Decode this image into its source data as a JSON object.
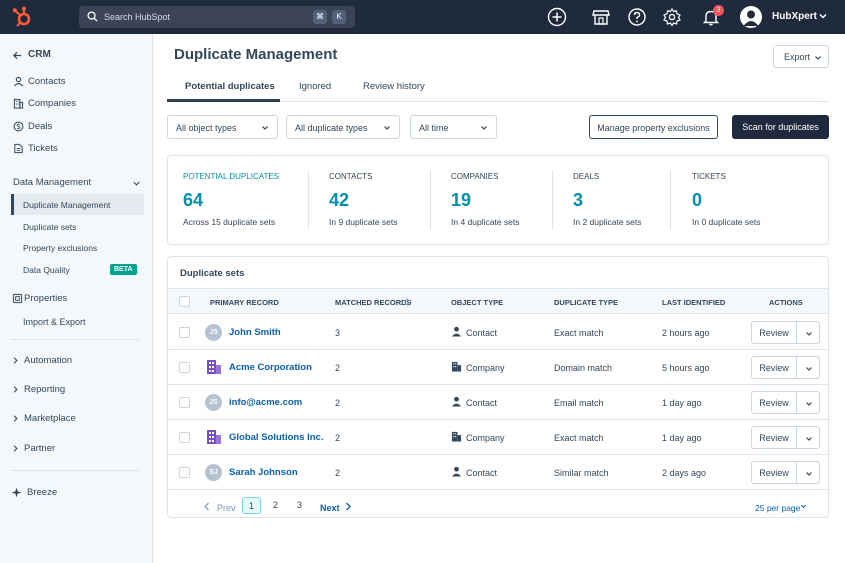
{
  "topbar": {
    "search_placeholder": "Search HubSpot",
    "shortcut_key1": "⌘",
    "shortcut_key2": "K",
    "notification_count": "3",
    "user_name": "HubXpert"
  },
  "sidebar": {
    "back_label": "CRM",
    "items": [
      {
        "label": "Contacts"
      },
      {
        "label": "Companies"
      },
      {
        "label": "Deals"
      },
      {
        "label": "Tickets"
      }
    ],
    "data_management": {
      "label": "Data Management",
      "items": [
        {
          "label": "Duplicate Management"
        },
        {
          "label": "Duplicate sets"
        },
        {
          "label": "Property exclusions"
        },
        {
          "label": "Data Quality",
          "badge": "BETA"
        }
      ]
    },
    "properties": {
      "label": "Properties"
    },
    "import_export": {
      "label": "Import & Export"
    },
    "groups": [
      {
        "label": "Automation"
      },
      {
        "label": "Reporting"
      },
      {
        "label": "Marketplace"
      },
      {
        "label": "Partner"
      }
    ],
    "breeze": {
      "label": "Breeze"
    }
  },
  "main": {
    "title": "Duplicate Management",
    "export_label": "Export",
    "tabs": [
      {
        "label": "Potential duplicates",
        "active": true
      },
      {
        "label": "Ignored"
      },
      {
        "label": "Review history"
      }
    ],
    "filters": [
      {
        "label": "All object types"
      },
      {
        "label": "All duplicate types"
      },
      {
        "label": "All time"
      }
    ],
    "manage_label": "Manage property exclusions",
    "scan_label": "Scan for duplicates"
  },
  "stats": [
    {
      "label": "POTENTIAL DUPLICATES",
      "value": "64",
      "desc": "Across 15 duplicate sets"
    },
    {
      "label": "CONTACTS",
      "value": "42",
      "desc": "In 9 duplicate sets"
    },
    {
      "label": "COMPANIES",
      "value": "19",
      "desc": "In 4 duplicate sets"
    },
    {
      "label": "DEALS",
      "value": "3",
      "desc": "In 2 duplicate sets"
    },
    {
      "label": "TICKETS",
      "value": "0",
      "desc": "In 0 duplicate sets"
    }
  ],
  "table": {
    "title": "Duplicate sets",
    "headers": {
      "primary": "PRIMARY RECORD",
      "matched": "MATCHED RECORDS",
      "object": "OBJECT TYPE",
      "dup_type": "DUPLICATE TYPE",
      "last": "LAST IDENTIFIED",
      "actions": "ACTIONS"
    },
    "review_label": "Review",
    "rows": [
      {
        "initials": "JS",
        "name": "John Smith",
        "matched": "3",
        "object": "Contact",
        "dup_type": "Exact match",
        "last": "2 hours ago"
      },
      {
        "initials": "",
        "name": "Acme Corporation",
        "matched": "2",
        "object": "Company",
        "dup_type": "Domain match",
        "last": "5 hours ago"
      },
      {
        "initials": "JS",
        "name": "info@acme.com",
        "matched": "2",
        "object": "Contact",
        "dup_type": "Email match",
        "last": "1 day ago"
      },
      {
        "initials": "",
        "name": "Global Solutions Inc.",
        "matched": "2",
        "object": "Company",
        "dup_type": "Exact match",
        "last": "1 day ago"
      },
      {
        "initials": "SJ",
        "name": "Sarah Johnson",
        "matched": "2",
        "object": "Contact",
        "dup_type": "Similar match",
        "last": "2 days ago"
      }
    ],
    "pagination": {
      "prev": "Prev",
      "pages": [
        "1",
        "2",
        "3"
      ],
      "next": "Next",
      "per_page": "25 per page"
    }
  },
  "colors": {
    "topbar": "#1f2a3c",
    "accent_teal": "#0091ae",
    "link_blue": "#0b5fb3",
    "hubspot_orange": "#ff5c35",
    "company_icon": "#7b4fc4",
    "beta_green": "#00a38d"
  }
}
